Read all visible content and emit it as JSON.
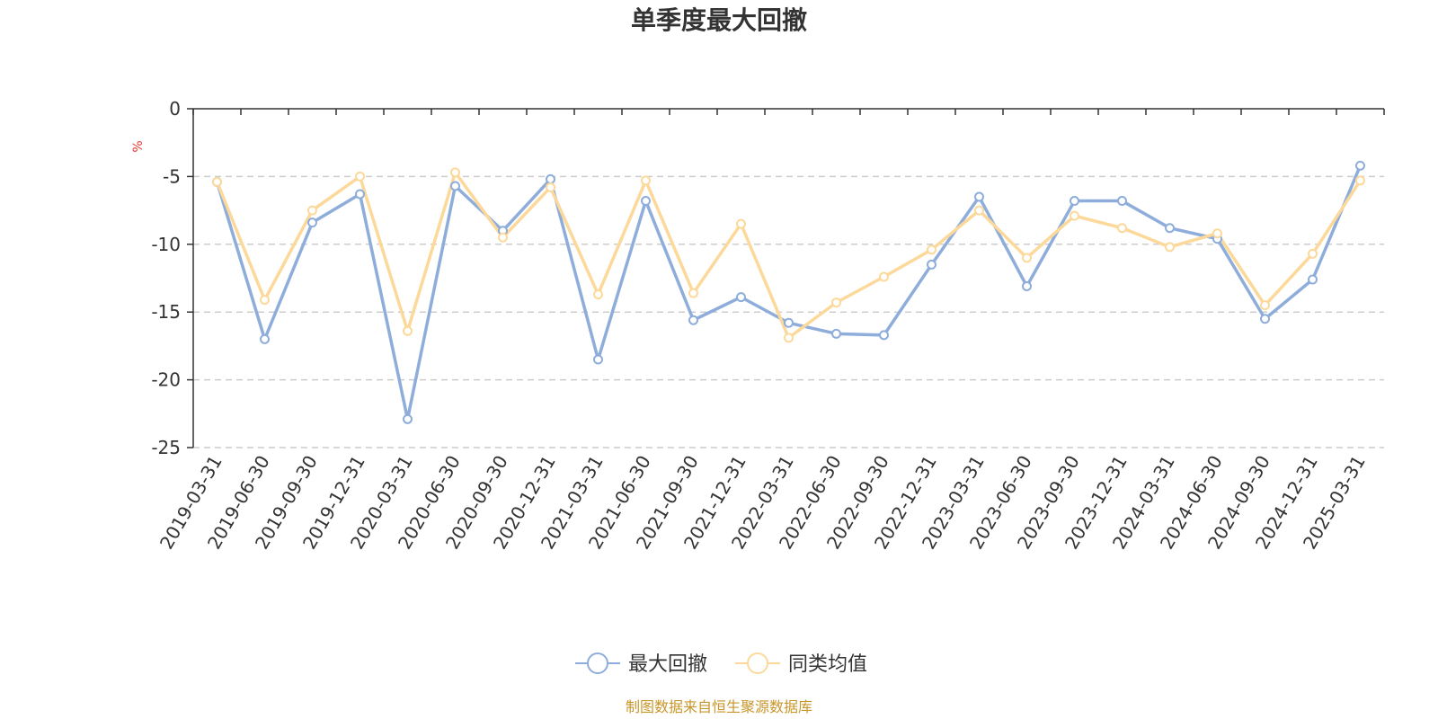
{
  "chart_data": {
    "type": "line",
    "title": "单季度最大回撤",
    "ylabel": "%",
    "ylim": [
      -25,
      0
    ],
    "yticks": [
      0,
      -5,
      -10,
      -15,
      -20,
      -25
    ],
    "grid": true,
    "legend_position": "bottom-center",
    "categories": [
      "2019-03-31",
      "2019-06-30",
      "2019-09-30",
      "2019-12-31",
      "2020-03-31",
      "2020-06-30",
      "2020-09-30",
      "2020-12-31",
      "2021-03-31",
      "2021-06-30",
      "2021-09-30",
      "2021-12-31",
      "2022-03-31",
      "2022-06-30",
      "2022-09-30",
      "2022-12-31",
      "2023-03-31",
      "2023-06-30",
      "2023-09-30",
      "2023-12-31",
      "2024-03-31",
      "2024-06-30",
      "2024-09-30",
      "2024-12-31",
      "2025-03-31"
    ],
    "series": [
      {
        "name": "最大回撤",
        "color": "#8eaddb",
        "values": [
          -5.4,
          -17.0,
          -8.4,
          -6.3,
          -22.9,
          -5.7,
          -9.0,
          -5.2,
          -18.5,
          -6.8,
          -15.6,
          -13.9,
          -15.8,
          -16.6,
          -16.7,
          -11.5,
          -6.5,
          -13.1,
          -6.8,
          -6.8,
          -8.8,
          -9.6,
          -15.5,
          -12.6,
          -4.2
        ]
      },
      {
        "name": "同类均值",
        "color": "#fcd99a",
        "values": [
          -5.4,
          -14.1,
          -7.5,
          -5.0,
          -16.4,
          -4.7,
          -9.5,
          -5.8,
          -13.7,
          -5.3,
          -13.6,
          -8.5,
          -16.9,
          -14.3,
          -12.4,
          -10.4,
          -7.5,
          -11.0,
          -7.9,
          -8.8,
          -10.2,
          -9.2,
          -14.5,
          -10.7,
          -5.3
        ]
      }
    ]
  },
  "source": "制图数据来自恒生聚源数据库",
  "colors": {
    "axis": "#333333",
    "grid": "#cccccc",
    "marker_fill": "#ffffff"
  }
}
